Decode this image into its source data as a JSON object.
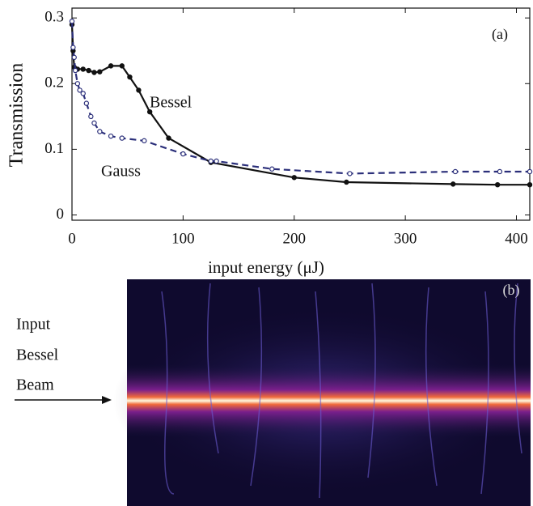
{
  "chart_data": {
    "type": "line",
    "x_label": "input energy (μJ)",
    "y_label": "Transmission",
    "panel_label": "(a)",
    "xlim": [
      0,
      412
    ],
    "ylim": [
      -0.008,
      0.315
    ],
    "xticks": [
      0,
      100,
      200,
      300,
      400
    ],
    "yticks": [
      0,
      0.1,
      0.2,
      0.3
    ],
    "series": [
      {
        "name": "Bessel",
        "color": "#111111",
        "style": "solid",
        "x": [
          0,
          1,
          2,
          5,
          10,
          15,
          20,
          25,
          35,
          45,
          52,
          60,
          70,
          87,
          125,
          200,
          247,
          343,
          383,
          412
        ],
        "values": [
          0.29,
          0.25,
          0.225,
          0.222,
          0.222,
          0.22,
          0.217,
          0.218,
          0.227,
          0.227,
          0.21,
          0.19,
          0.157,
          0.117,
          0.08,
          0.057,
          0.05,
          0.047,
          0.046,
          0.046
        ]
      },
      {
        "name": "Gauss",
        "color": "#2b2f7a",
        "style": "dashed",
        "x": [
          0,
          1,
          2,
          3,
          5,
          7,
          10,
          13,
          17,
          20,
          25,
          35,
          45,
          65,
          100,
          125,
          130,
          180,
          250,
          345,
          385,
          412
        ],
        "values": [
          0.295,
          0.255,
          0.24,
          0.22,
          0.2,
          0.19,
          0.185,
          0.17,
          0.15,
          0.14,
          0.127,
          0.12,
          0.117,
          0.113,
          0.093,
          0.082,
          0.082,
          0.07,
          0.063,
          0.066,
          0.066,
          0.066
        ]
      }
    ]
  },
  "panel_b": {
    "label": "(b)",
    "caption": [
      "Input",
      "Bessel",
      "Beam"
    ]
  }
}
